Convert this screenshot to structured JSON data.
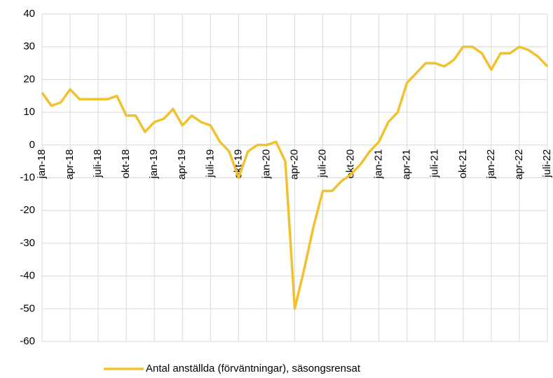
{
  "chart_data": {
    "type": "line",
    "categories": [
      "jan-18",
      null,
      null,
      "apr-18",
      null,
      null,
      "juli-18",
      null,
      null,
      "okt-18",
      null,
      null,
      "jan-19",
      null,
      null,
      "apr-19",
      null,
      null,
      "juli-19",
      null,
      null,
      "okt-19",
      null,
      null,
      "jan-20",
      null,
      null,
      "apr-20",
      null,
      null,
      "juli-20",
      null,
      null,
      "okt-20",
      null,
      null,
      "jan-21",
      null,
      null,
      "apr-21",
      null,
      null,
      "juli-21",
      null,
      null,
      "okt-21",
      null,
      null,
      "jan-22",
      null,
      null,
      "apr-22",
      null,
      null,
      "juli-22"
    ],
    "series": [
      {
        "name": "Antal anställda (förväntningar), säsongsrensat",
        "color": "#f0c230",
        "values": [
          16,
          12,
          13,
          17,
          14,
          14,
          14,
          14,
          15,
          9,
          9,
          4,
          7,
          8,
          11,
          6,
          9,
          7,
          6,
          1,
          -2,
          -10,
          -2,
          0,
          0,
          1,
          -5,
          -50,
          -38,
          -25,
          -14,
          -14,
          -11,
          -9,
          -6,
          -2,
          1,
          7,
          10,
          19,
          22,
          25,
          25,
          24,
          26,
          30,
          30,
          28,
          23,
          28,
          28,
          30,
          29,
          27,
          24
        ]
      }
    ],
    "ylim": [
      -60,
      40
    ],
    "yticks": [
      -60,
      -50,
      -40,
      -30,
      -20,
      -10,
      0,
      10,
      20,
      30,
      40
    ],
    "grid": true,
    "legend": "bottom"
  }
}
